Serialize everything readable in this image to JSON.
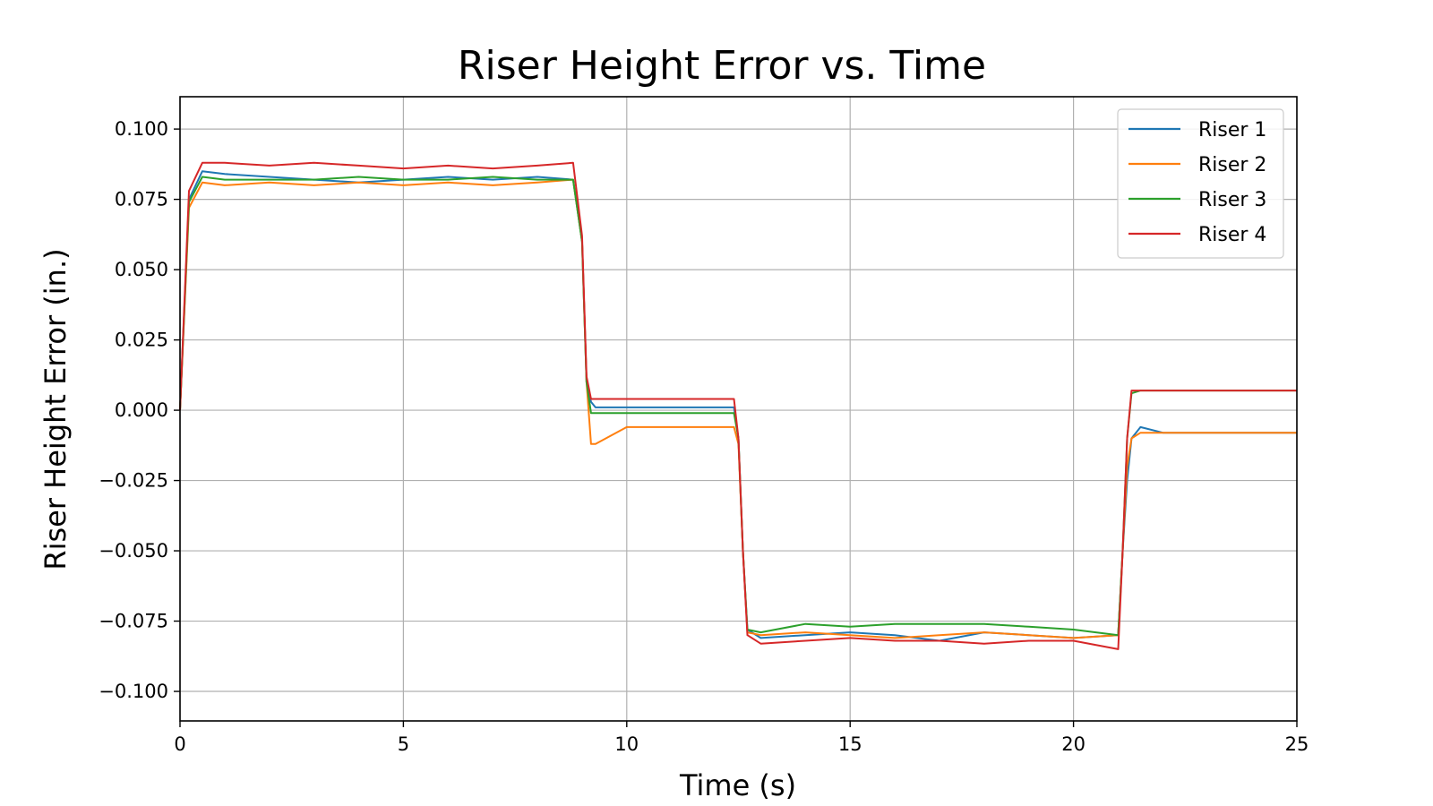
{
  "chart_data": {
    "type": "line",
    "title": "Riser Height Error vs. Time",
    "xlabel": "Time (s)",
    "ylabel": "Riser Height Error (in.)",
    "xlim": [
      0,
      25
    ],
    "ylim": [
      -0.1105,
      0.1115
    ],
    "xticks": [
      0,
      5,
      10,
      15,
      20,
      25
    ],
    "xtick_labels": [
      "0",
      "5",
      "10",
      "15",
      "20",
      "25"
    ],
    "yticks": [
      0.1,
      0.075,
      0.05,
      0.025,
      0.0,
      -0.025,
      -0.05,
      -0.075,
      -0.1
    ],
    "ytick_labels": [
      "0.100",
      "0.075",
      "0.050",
      "0.025",
      "0.000",
      "−0.025",
      "−0.050",
      "−0.075",
      "−0.100"
    ],
    "grid": true,
    "legend_position": "top-right",
    "series": [
      {
        "name": "Riser 1",
        "color": "#1f77b4",
        "x": [
          0,
          0.2,
          0.5,
          1,
          2,
          3,
          4,
          5,
          6,
          7,
          8,
          8.8,
          9.0,
          9.1,
          9.2,
          9.3,
          10,
          11,
          12,
          12.4,
          12.5,
          12.6,
          12.7,
          13,
          14,
          15,
          16,
          17,
          18,
          19,
          20,
          21,
          21.1,
          21.2,
          21.3,
          21.5,
          22,
          23,
          24,
          25
        ],
        "y": [
          0,
          0.075,
          0.085,
          0.084,
          0.083,
          0.082,
          0.081,
          0.082,
          0.083,
          0.082,
          0.083,
          0.082,
          0.06,
          0.01,
          0.003,
          0.001,
          0.001,
          0.001,
          0.001,
          0.001,
          -0.01,
          -0.05,
          -0.078,
          -0.081,
          -0.08,
          -0.079,
          -0.08,
          -0.082,
          -0.079,
          -0.08,
          -0.081,
          -0.08,
          -0.05,
          -0.025,
          -0.01,
          -0.006,
          -0.008,
          -0.008,
          -0.008,
          -0.008
        ]
      },
      {
        "name": "Riser 2",
        "color": "#ff7f0e",
        "x": [
          0,
          0.2,
          0.5,
          1,
          2,
          3,
          4,
          5,
          6,
          7,
          8,
          8.8,
          9.0,
          9.1,
          9.2,
          9.3,
          10,
          11,
          12,
          12.4,
          12.5,
          12.6,
          12.7,
          13,
          14,
          15,
          16,
          17,
          18,
          19,
          20,
          21,
          21.1,
          21.2,
          21.3,
          21.5,
          22,
          23,
          24,
          25
        ],
        "y": [
          0,
          0.072,
          0.081,
          0.08,
          0.081,
          0.08,
          0.081,
          0.08,
          0.081,
          0.08,
          0.081,
          0.082,
          0.06,
          0.01,
          -0.012,
          -0.012,
          -0.006,
          -0.006,
          -0.006,
          -0.006,
          -0.012,
          -0.05,
          -0.079,
          -0.08,
          -0.079,
          -0.08,
          -0.081,
          -0.08,
          -0.079,
          -0.08,
          -0.081,
          -0.08,
          -0.05,
          -0.02,
          -0.01,
          -0.008,
          -0.008,
          -0.008,
          -0.008,
          -0.008
        ]
      },
      {
        "name": "Riser 3",
        "color": "#2ca02c",
        "x": [
          0,
          0.2,
          0.5,
          1,
          2,
          3,
          4,
          5,
          6,
          7,
          8,
          8.8,
          9.0,
          9.1,
          9.2,
          9.3,
          10,
          11,
          12,
          12.4,
          12.5,
          12.6,
          12.7,
          13,
          14,
          15,
          16,
          17,
          18,
          19,
          20,
          21,
          21.1,
          21.2,
          21.3,
          21.5,
          22,
          23,
          24,
          25
        ],
        "y": [
          0,
          0.074,
          0.083,
          0.082,
          0.082,
          0.082,
          0.083,
          0.082,
          0.082,
          0.083,
          0.082,
          0.082,
          0.06,
          0.01,
          -0.001,
          -0.001,
          -0.001,
          -0.001,
          -0.001,
          -0.001,
          -0.01,
          -0.05,
          -0.078,
          -0.079,
          -0.076,
          -0.077,
          -0.076,
          -0.076,
          -0.076,
          -0.077,
          -0.078,
          -0.08,
          -0.05,
          -0.01,
          0.006,
          0.007,
          0.007,
          0.007,
          0.007,
          0.007
        ]
      },
      {
        "name": "Riser 4",
        "color": "#d62728",
        "x": [
          0,
          0.2,
          0.5,
          1,
          2,
          3,
          4,
          5,
          6,
          7,
          8,
          8.8,
          9.0,
          9.1,
          9.2,
          9.3,
          10,
          11,
          12,
          12.4,
          12.5,
          12.6,
          12.7,
          13,
          14,
          15,
          16,
          17,
          18,
          19,
          20,
          21,
          21.1,
          21.2,
          21.3,
          21.5,
          22,
          23,
          24,
          25
        ],
        "y": [
          0,
          0.078,
          0.088,
          0.088,
          0.087,
          0.088,
          0.087,
          0.086,
          0.087,
          0.086,
          0.087,
          0.088,
          0.062,
          0.012,
          0.004,
          0.004,
          0.004,
          0.004,
          0.004,
          0.004,
          -0.01,
          -0.05,
          -0.08,
          -0.083,
          -0.082,
          -0.081,
          -0.082,
          -0.082,
          -0.083,
          -0.082,
          -0.082,
          -0.085,
          -0.05,
          -0.01,
          0.007,
          0.007,
          0.007,
          0.007,
          0.007,
          0.007
        ]
      }
    ]
  }
}
